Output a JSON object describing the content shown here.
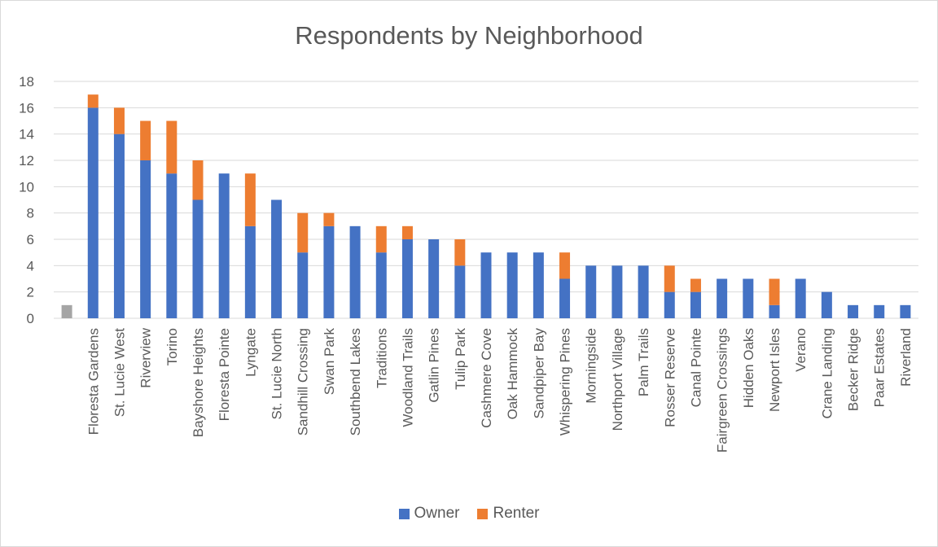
{
  "chart_data": {
    "type": "bar",
    "stacked": true,
    "title": "Respondents by Neighborhood",
    "xlabel": "",
    "ylabel": "",
    "ylim": [
      0,
      18
    ],
    "yticks": [
      0,
      2,
      4,
      6,
      8,
      10,
      12,
      14,
      16,
      18
    ],
    "grid": true,
    "legend_position": "bottom",
    "categories": [
      "",
      "Floresta Gardens",
      "St. Lucie West",
      "Riverview",
      "Torino",
      "Bayshore Heights",
      "Floresta Pointe",
      "Lyngate",
      "St. Lucie North",
      "Sandhill Crossing",
      "Swan Park",
      "Southbend Lakes",
      "Traditions",
      "Woodland Trails",
      "Gatlin Pines",
      "Tulip Park",
      "Cashmere Cove",
      "Oak Hammock",
      "Sandpiper Bay",
      "Whispering Pines",
      "Morningside",
      "Northport Village",
      "Palm Trails",
      "Rosser Reserve",
      "Canal Pointe",
      "Fairgreen Crossings",
      "Hidden Oaks",
      "Newport Isles",
      "Verano",
      "Crane Landing",
      "Becker Ridge",
      "Paar Estates",
      "Riverland"
    ],
    "series": [
      {
        "name": "Owner",
        "color": "#4472c4",
        "values": [
          0,
          16,
          14,
          12,
          11,
          9,
          11,
          7,
          9,
          5,
          7,
          7,
          5,
          6,
          6,
          4,
          5,
          5,
          5,
          3,
          4,
          4,
          4,
          2,
          2,
          3,
          3,
          1,
          3,
          2,
          1,
          1,
          1
        ]
      },
      {
        "name": "Renter",
        "color": "#ed7d31",
        "values": [
          0,
          1,
          2,
          3,
          4,
          3,
          0,
          4,
          0,
          3,
          1,
          0,
          2,
          1,
          0,
          2,
          0,
          0,
          0,
          2,
          0,
          0,
          0,
          2,
          1,
          0,
          0,
          2,
          0,
          0,
          0,
          0,
          0
        ]
      },
      {
        "color": "#a5a5a5",
        "values": [
          1,
          0,
          0,
          0,
          0,
          0,
          0,
          0,
          0,
          0,
          0,
          0,
          0,
          0,
          0,
          0,
          0,
          0,
          0,
          0,
          0,
          0,
          0,
          0,
          0,
          0,
          0,
          0,
          0,
          0,
          0,
          0,
          0
        ]
      }
    ]
  }
}
